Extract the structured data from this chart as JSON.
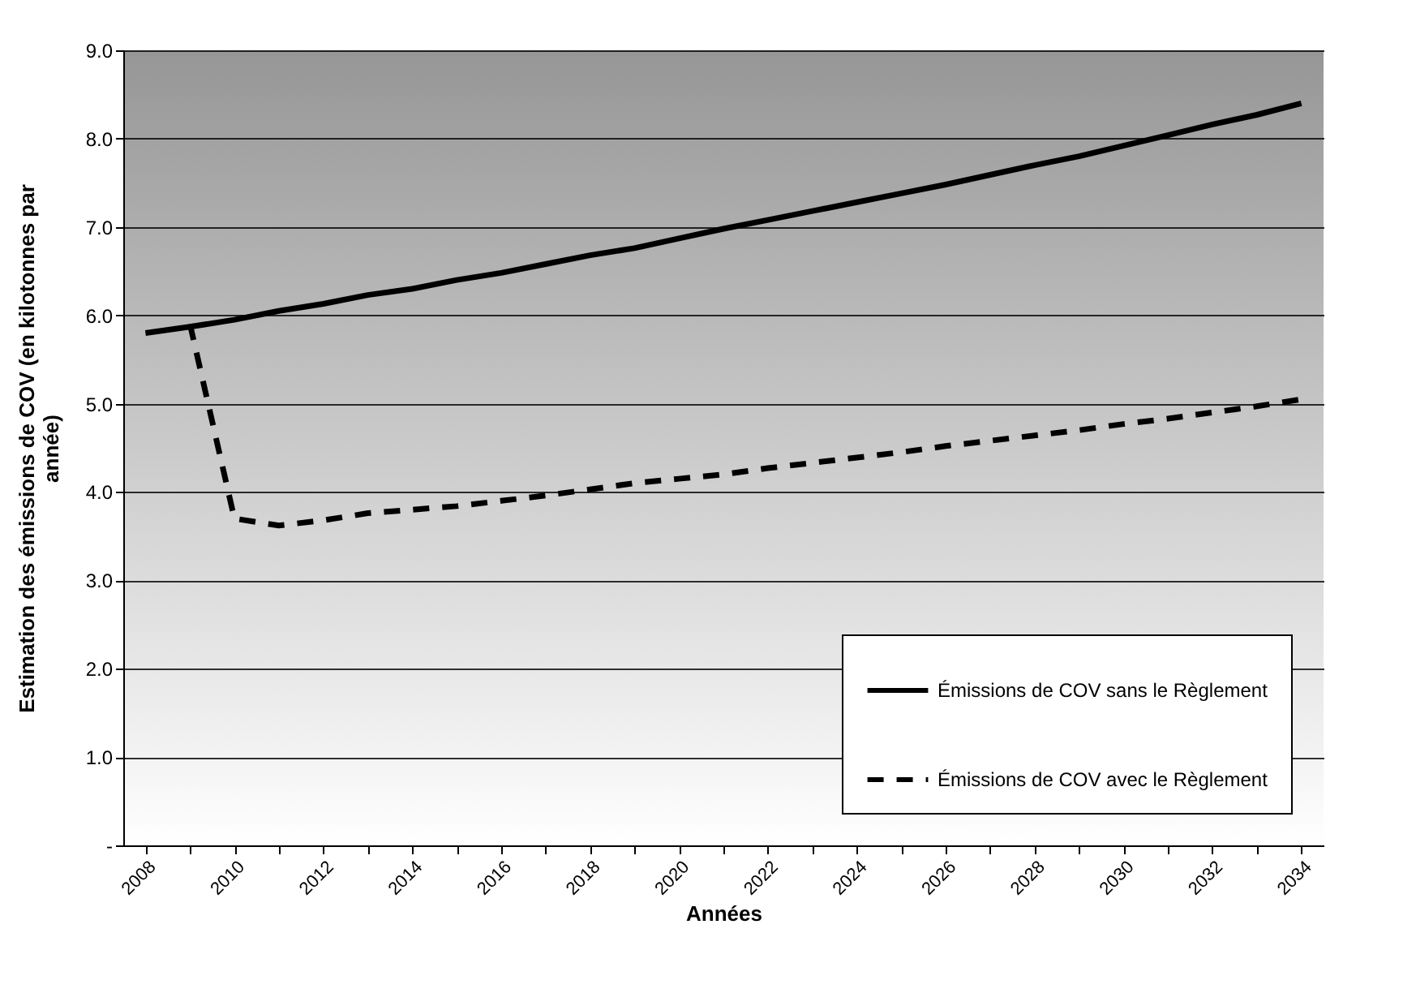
{
  "chart_data": {
    "type": "line",
    "xlabel": "Années",
    "ylabel": "Estimation des émissions de COV (en kilotonnes par année)",
    "categories": [
      "2008",
      null,
      "2010",
      null,
      "2012",
      null,
      "2014",
      null,
      "2016",
      null,
      "2018",
      null,
      "2020",
      null,
      "2022",
      null,
      "2024",
      null,
      "2026",
      null,
      "2028",
      null,
      "2030",
      null,
      "2032",
      null,
      "2034"
    ],
    "series": [
      {
        "name": "Émissions de COV sans le Règlement",
        "color": "#000000",
        "line_style": "solid",
        "values": [
          5.8,
          5.87,
          5.95,
          6.05,
          6.13,
          6.23,
          6.3,
          6.4,
          6.48,
          6.58,
          6.68,
          6.76,
          6.87,
          6.98,
          7.08,
          7.18,
          7.28,
          7.38,
          7.48,
          7.59,
          7.7,
          7.8,
          7.92,
          8.04,
          8.16,
          8.27,
          8.4
        ]
      },
      {
        "name": "Émissions de COV avec le Règlement",
        "color": "#000000",
        "line_style": "dashed",
        "values": [
          null,
          5.9,
          3.7,
          3.62,
          3.68,
          3.76,
          3.8,
          3.84,
          3.9,
          3.96,
          4.03,
          4.1,
          4.15,
          4.2,
          4.27,
          4.33,
          4.39,
          4.45,
          4.52,
          4.58,
          4.64,
          4.7,
          4.77,
          4.83,
          4.9,
          4.97,
          5.05
        ]
      }
    ],
    "ylim": [
      0,
      9
    ],
    "yticks": [
      {
        "value": 0,
        "label": "-"
      },
      {
        "value": 1,
        "label": "1.0"
      },
      {
        "value": 2,
        "label": "2.0"
      },
      {
        "value": 3,
        "label": "3.0"
      },
      {
        "value": 4,
        "label": "4.0"
      },
      {
        "value": 5,
        "label": "5.0"
      },
      {
        "value": 6,
        "label": "6.0"
      },
      {
        "value": 7,
        "label": "7.0"
      },
      {
        "value": 8,
        "label": "8.0"
      },
      {
        "value": 9,
        "label": "9.0"
      }
    ],
    "grid": "y",
    "legend": "bottom right"
  }
}
